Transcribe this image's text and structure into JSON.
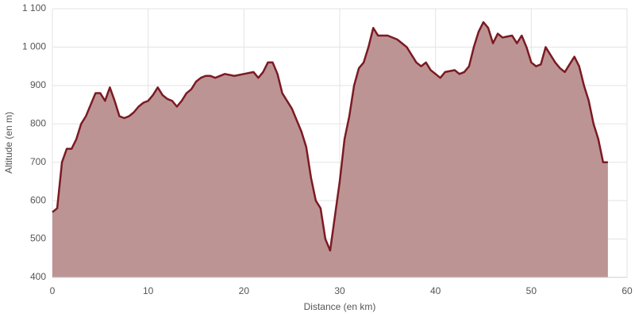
{
  "chart_data": {
    "type": "area",
    "xlabel": "Distance (en km)",
    "ylabel": "Altitude (en m)",
    "x": [
      0,
      0.5,
      1,
      1.5,
      2,
      2.5,
      3,
      3.5,
      4,
      4.5,
      5,
      5.5,
      6,
      6.5,
      7,
      7.5,
      8,
      8.5,
      9,
      9.5,
      10,
      10.5,
      11,
      11.5,
      12,
      12.5,
      13,
      13.5,
      14,
      14.5,
      15,
      15.5,
      16,
      16.5,
      17,
      18,
      19,
      20,
      21,
      21.5,
      22,
      22.5,
      23,
      23.5,
      24,
      24.5,
      25,
      25.5,
      26,
      26.5,
      27,
      27.5,
      28,
      28.5,
      29,
      29.5,
      30,
      30.5,
      31,
      31.5,
      32,
      32.5,
      33,
      33.5,
      34,
      35,
      36,
      37,
      37.5,
      38,
      38.5,
      39,
      39.5,
      40,
      40.5,
      41,
      42,
      42.5,
      43,
      43.5,
      44,
      44.5,
      45,
      45.5,
      46,
      46.5,
      47,
      48,
      48.5,
      49,
      49.5,
      50,
      50.5,
      51,
      51.5,
      52,
      52.5,
      53,
      53.5,
      54,
      54.5,
      55,
      55.5,
      56,
      56.5,
      57,
      57.5,
      58
    ],
    "values": [
      570,
      580,
      700,
      735,
      735,
      760,
      800,
      820,
      850,
      880,
      880,
      860,
      895,
      860,
      820,
      815,
      820,
      830,
      845,
      855,
      860,
      875,
      895,
      875,
      865,
      860,
      845,
      860,
      880,
      890,
      910,
      920,
      925,
      925,
      920,
      930,
      925,
      930,
      935,
      920,
      935,
      960,
      960,
      930,
      880,
      860,
      840,
      810,
      780,
      740,
      660,
      600,
      580,
      500,
      470,
      560,
      650,
      760,
      820,
      900,
      945,
      960,
      1000,
      1050,
      1030,
      1030,
      1020,
      1000,
      980,
      960,
      950,
      960,
      940,
      930,
      920,
      935,
      940,
      930,
      935,
      950,
      1000,
      1040,
      1065,
      1050,
      1010,
      1035,
      1025,
      1030,
      1010,
      1030,
      1000,
      960,
      950,
      955,
      1000,
      980,
      960,
      945,
      935,
      955,
      975,
      950,
      900,
      860,
      800,
      760,
      700,
      700
    ],
    "color": "#7b1a22",
    "area_color": "#bd9494",
    "xlim": [
      0,
      60
    ],
    "xticks": [
      0,
      10,
      20,
      30,
      40,
      50,
      60
    ],
    "ylim": [
      400,
      1100
    ],
    "yticks": [
      400,
      500,
      600,
      700,
      800,
      900,
      {
        "value": 1000,
        "label": "1 000"
      },
      {
        "value": 1100,
        "label": "1 100"
      }
    ],
    "grid": true
  }
}
